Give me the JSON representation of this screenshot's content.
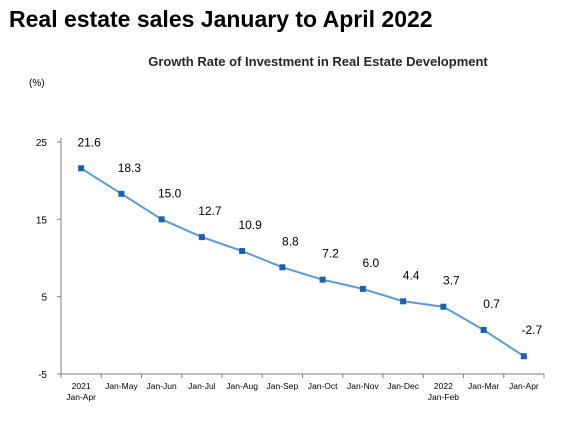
{
  "page": {
    "title": "Real estate sales January to April 2022"
  },
  "chart_data": {
    "type": "line",
    "title": "Growth Rate of Investment in Real Estate  Development",
    "unit_label": "(%)",
    "xlabel": "",
    "ylabel": "",
    "ylim": [
      -5,
      25
    ],
    "yticks": [
      25,
      15,
      5,
      -5
    ],
    "grid": false,
    "categories": [
      [
        "2021",
        "Jan-Apr"
      ],
      [
        "Jan-May"
      ],
      [
        "Jan-Jun"
      ],
      [
        "Jan-Jul"
      ],
      [
        "Jan-Aug"
      ],
      [
        "Jan-Sep"
      ],
      [
        "Jan-Oct"
      ],
      [
        "Jan-Nov"
      ],
      [
        "Jan-Dec"
      ],
      [
        "2022",
        "Jan-Feb"
      ],
      [
        "Jan-Mar"
      ],
      [
        "Jan-Apr"
      ]
    ],
    "series": [
      {
        "values": [
          21.6,
          18.3,
          15.0,
          12.7,
          10.9,
          8.8,
          7.2,
          6.0,
          4.4,
          3.7,
          0.7,
          -2.7
        ],
        "labels": [
          "21.6",
          "18.3",
          "15.0",
          "12.7",
          "10.9",
          "8.8",
          "7.2",
          "6.0",
          "4.4",
          "3.7",
          "0.7",
          "-2.7"
        ],
        "color": "#5b9bd5",
        "marker_color": "#1f5fae"
      }
    ],
    "colors": {
      "axis": "#7f7f7f",
      "text": "#000000"
    }
  }
}
